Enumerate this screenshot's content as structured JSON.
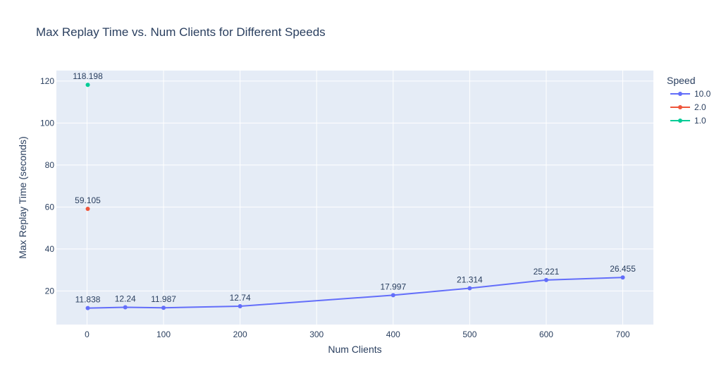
{
  "chart_data": {
    "type": "line",
    "title": "Max Replay Time vs. Num Clients for Different Speeds",
    "xlabel": "Num Clients",
    "ylabel": "Max Replay Time (seconds)",
    "xlim": [
      -40,
      740
    ],
    "ylim": [
      4,
      125
    ],
    "xticks": [
      0,
      100,
      200,
      300,
      400,
      500,
      600,
      700
    ],
    "yticks": [
      20,
      40,
      60,
      80,
      100,
      120
    ],
    "grid": true,
    "legend": {
      "title": "Speed",
      "position": "right"
    },
    "colors": {
      "plot_bg": "#e5ecf6",
      "grid": "#ffffff",
      "text": "#2a3f5f"
    },
    "series": [
      {
        "name": "10.0",
        "color": "#636efa",
        "points": [
          {
            "x": 1,
            "y": 11.838,
            "label": "11.838"
          },
          {
            "x": 50,
            "y": 12.24,
            "label": "12.24"
          },
          {
            "x": 100,
            "y": 11.987,
            "label": "11.987"
          },
          {
            "x": 200,
            "y": 12.74,
            "label": "12.74"
          },
          {
            "x": 400,
            "y": 17.997,
            "label": "17.997"
          },
          {
            "x": 500,
            "y": 21.314,
            "label": "21.314"
          },
          {
            "x": 600,
            "y": 25.221,
            "label": "25.221"
          },
          {
            "x": 700,
            "y": 26.455,
            "label": "26.455"
          }
        ]
      },
      {
        "name": "2.0",
        "color": "#ef553b",
        "points": [
          {
            "x": 1,
            "y": 59.105,
            "label": "59.105"
          }
        ]
      },
      {
        "name": "1.0",
        "color": "#00cc96",
        "points": [
          {
            "x": 1,
            "y": 118.198,
            "label": "118.198"
          }
        ]
      }
    ]
  }
}
